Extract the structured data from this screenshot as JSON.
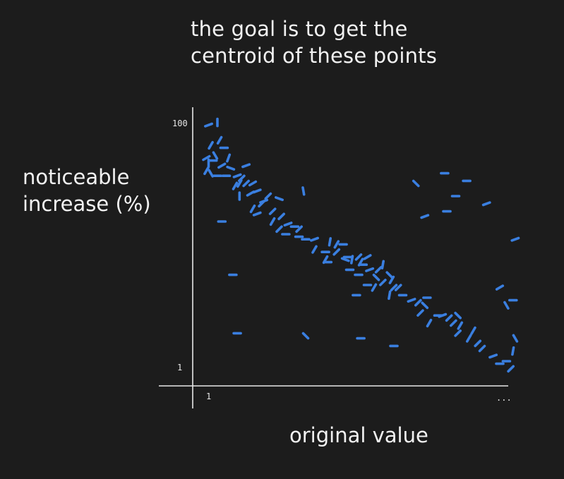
{
  "title": {
    "line1": "the goal is to get the",
    "line2": "centroid of these points"
  },
  "axes": {
    "ylabel_line1": "noticeable",
    "ylabel_line2": "increase (%)",
    "xlabel": "original value",
    "y_tick_top": "100",
    "y_tick_bottom": "1",
    "x_tick_left": "1",
    "x_tick_right": "..."
  },
  "colors": {
    "background": "#1c1c1c",
    "axis": "#e8e8e8",
    "points": "#3a7fe0",
    "text": "#f2f2f2"
  },
  "chart_data": {
    "type": "scatter",
    "title": "the goal is to get the centroid of these points",
    "xlabel": "original value",
    "ylabel": "noticeable increase (%)",
    "x_ticks": [
      "1",
      "..."
    ],
    "y_ticks": [
      "1",
      "100"
    ],
    "grid": false,
    "marker": "short dash strokes",
    "points": [
      [
        4,
        98,
        20
      ],
      [
        8,
        99,
        90
      ],
      [
        9,
        92,
        60
      ],
      [
        5,
        90,
        60
      ],
      [
        11,
        89,
        0
      ],
      [
        3,
        85,
        30
      ],
      [
        7,
        86,
        -60
      ],
      [
        13,
        85,
        70
      ],
      [
        6,
        84,
        0
      ],
      [
        4,
        83,
        90
      ],
      [
        10,
        82,
        30
      ],
      [
        14,
        81,
        -20
      ],
      [
        3,
        80,
        60
      ],
      [
        5,
        79,
        -60
      ],
      [
        8,
        78,
        0
      ],
      [
        12,
        78,
        0
      ],
      [
        17,
        78,
        20
      ],
      [
        19,
        77,
        45
      ],
      [
        18,
        75,
        60
      ],
      [
        21,
        75,
        45
      ],
      [
        24,
        75,
        30
      ],
      [
        16,
        74,
        60
      ],
      [
        26,
        72,
        20
      ],
      [
        18,
        70,
        90
      ],
      [
        23,
        71,
        30
      ],
      [
        31,
        70,
        45
      ],
      [
        29,
        68,
        20
      ],
      [
        28,
        67,
        45
      ],
      [
        36,
        69,
        -20
      ],
      [
        24,
        65,
        60
      ],
      [
        33,
        64,
        45
      ],
      [
        26,
        63,
        20
      ],
      [
        37,
        62,
        45
      ],
      [
        33,
        60,
        60
      ],
      [
        40,
        59,
        20
      ],
      [
        36,
        57,
        45
      ],
      [
        43,
        58,
        0
      ],
      [
        45,
        57,
        45
      ],
      [
        39,
        55,
        0
      ],
      [
        45,
        54,
        0
      ],
      [
        48,
        53,
        0
      ],
      [
        52,
        53,
        20
      ],
      [
        52,
        49,
        60
      ],
      [
        59,
        52,
        80
      ],
      [
        62,
        51,
        60
      ],
      [
        65,
        51,
        0
      ],
      [
        57,
        48,
        0
      ],
      [
        62,
        48,
        45
      ],
      [
        67,
        46,
        0
      ],
      [
        69,
        45,
        80
      ],
      [
        72,
        46,
        45
      ],
      [
        76,
        46,
        30
      ],
      [
        58,
        44,
        0
      ],
      [
        66,
        45,
        -20
      ],
      [
        74,
        43,
        0
      ],
      [
        73,
        44,
        60
      ],
      [
        83,
        43,
        80
      ],
      [
        68,
        41,
        0
      ],
      [
        77,
        41,
        20
      ],
      [
        81,
        41,
        45
      ],
      [
        72,
        39,
        0
      ],
      [
        80,
        38,
        -45
      ],
      [
        86,
        39,
        -45
      ],
      [
        87,
        37,
        60
      ],
      [
        83,
        36,
        45
      ],
      [
        76,
        35,
        0
      ],
      [
        79,
        34,
        60
      ],
      [
        88,
        34,
        45
      ],
      [
        90,
        34,
        45
      ],
      [
        71,
        31,
        0
      ],
      [
        86,
        31,
        80
      ],
      [
        92,
        31,
        0
      ],
      [
        96,
        29,
        20
      ],
      [
        99,
        28,
        45
      ],
      [
        103,
        30,
        0
      ],
      [
        102,
        27,
        -45
      ],
      [
        100,
        24,
        45
      ],
      [
        108,
        23,
        0
      ],
      [
        110,
        23,
        20
      ],
      [
        113,
        22,
        45
      ],
      [
        117,
        23,
        -45
      ],
      [
        104,
        20,
        60
      ],
      [
        115,
        20,
        45
      ],
      [
        118,
        19,
        60
      ],
      [
        117,
        16,
        45
      ],
      [
        122,
        14,
        60
      ],
      [
        124,
        17,
        60
      ],
      [
        126,
        12,
        45
      ],
      [
        128,
        10,
        45
      ],
      [
        133,
        7,
        20
      ],
      [
        136,
        4,
        0
      ],
      [
        139,
        5,
        0
      ],
      [
        141,
        2,
        45
      ],
      [
        142,
        9,
        80
      ],
      [
        143,
        14,
        -60
      ],
      [
        139,
        27,
        -60
      ],
      [
        142,
        29,
        0
      ],
      [
        47,
        72,
        -80
      ],
      [
        57,
        45,
        60
      ],
      [
        102,
        62,
        20
      ],
      [
        98,
        75,
        -45
      ],
      [
        111,
        79,
        0
      ],
      [
        112,
        64,
        0
      ],
      [
        116,
        70,
        0
      ],
      [
        121,
        76,
        0
      ],
      [
        130,
        67,
        20
      ],
      [
        143,
        53,
        20
      ],
      [
        136,
        34,
        30
      ],
      [
        10,
        60,
        0
      ],
      [
        15,
        39,
        0
      ],
      [
        17,
        16,
        0
      ],
      [
        48,
        15,
        -45
      ],
      [
        73,
        14,
        0
      ],
      [
        88,
        11,
        0
      ],
      [
        21,
        82,
        20
      ]
    ]
  }
}
